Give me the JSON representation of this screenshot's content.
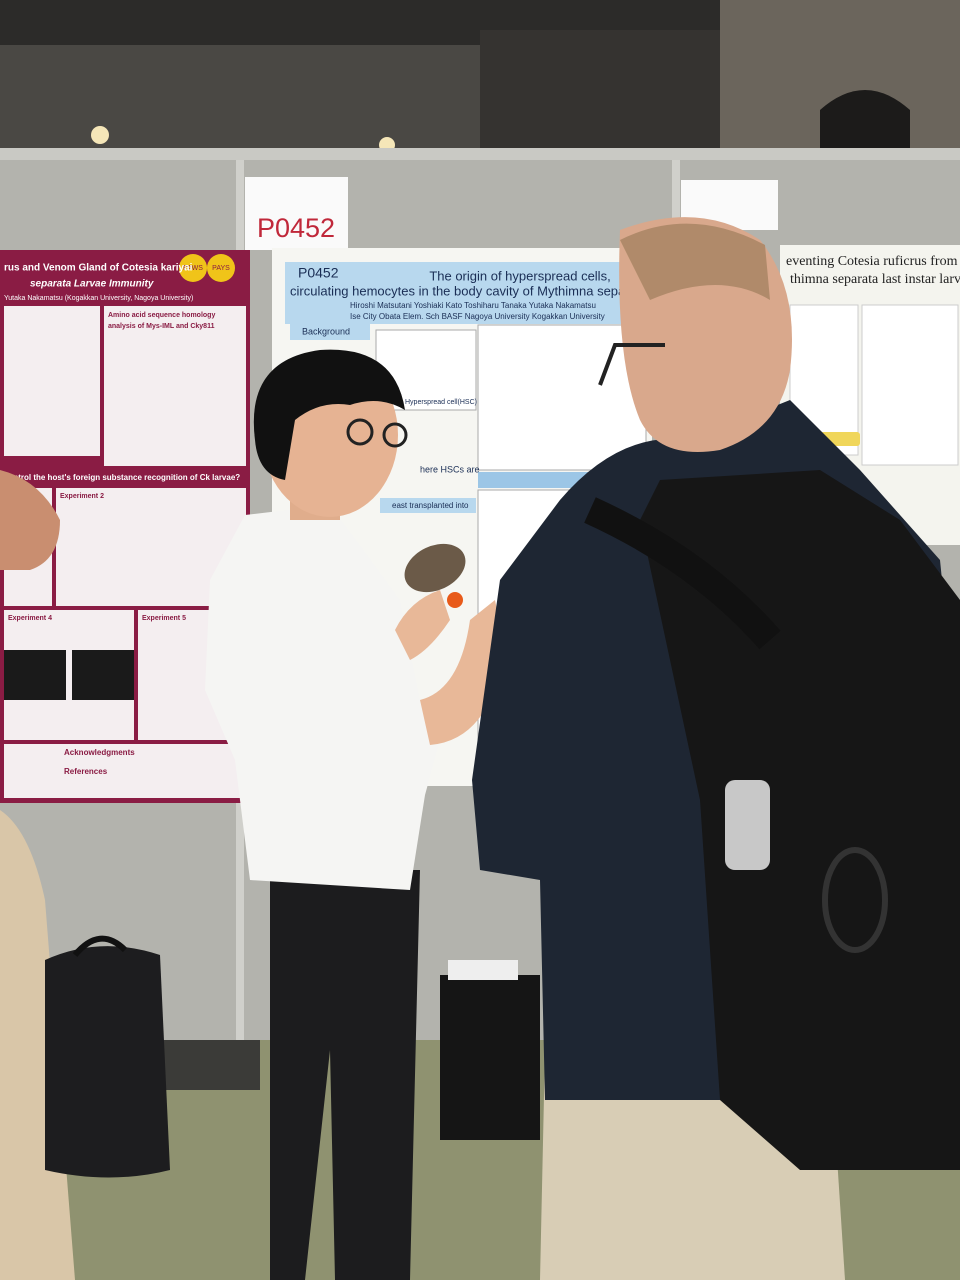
{
  "scene": {
    "sign": "P0452",
    "center_poster": {
      "id": "P0452",
      "title_lines": [
        "The origin of hyperspread cells,",
        "circulating hemocytes in the body cavity of Mythimna sepa"
      ],
      "authors": "Hiroshi Matsutani Yoshiaki Kato Toshiharu Tanaka Yutaka Nakamatsu",
      "affiliations": "Ise City Obata Elem. Sch BASF Nagoya University Kogakkan University",
      "sections": [
        "Background",
        "Hyperspread cell(HSC)",
        "here HSCs are",
        "east transplanted into"
      ]
    },
    "left_poster": {
      "title_lines": [
        "rus and Venom Gland of Cotesia kariyai",
        "separata Larvae Immunity"
      ],
      "authors": "Yutaka Nakamatsu (Kogakkan University, Nagoya University)",
      "badges": [
        "PAWS",
        "PAYS"
      ],
      "sections": [
        "Amino acid sequence homology",
        "analysis of Mys-IML and Cky811",
        "control the host's foreign substance recognition of Ck larvae?",
        "Experiment 2",
        "Experiment 4",
        "Experiment 5",
        "Acknowledgments",
        "References"
      ]
    },
    "right_poster": {
      "title_lines": [
        "eventing Cotesia ruficrus from pa",
        "thimna separata last instar larvu"
      ]
    }
  }
}
